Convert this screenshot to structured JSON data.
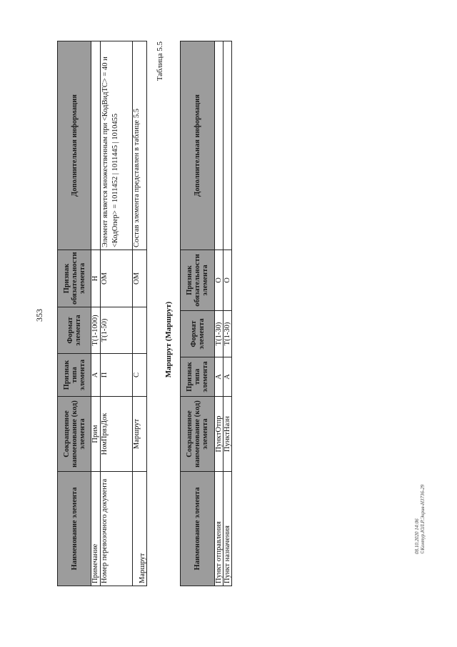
{
  "page_number": "353",
  "table1": {
    "headers": [
      "Наименование элемента",
      "Сокращенное наименование (код) элемента",
      "Признак типа элемента",
      "Формат элемента",
      "Признак обязательности элемента",
      "Дополнительная информация"
    ],
    "rows": [
      [
        "Примечание",
        "Прим",
        "А",
        "Т(1-1000)",
        "Н",
        ""
      ],
      [
        "Номер перевозочного документа",
        "НомПрвзДок",
        "П",
        "Т(1-50)",
        "ОМ",
        "Элемент является множественным при <КодВидТС> = 40  и <КодОпер> = 1011452 | 1011445 | 1010455"
      ],
      [
        "Маршрут",
        "Маршрут",
        "С",
        "",
        "ОМ",
        "Состав элемента представлен в таблице 5.5"
      ]
    ]
  },
  "table_caption": "Таблица 5.5",
  "table2_title": "Маршрут (Маршрут)",
  "table2": {
    "headers": [
      "Наименование элемента",
      "Сокращенное наименование (код) элемента",
      "Признак типа элемента",
      "Формат элемента",
      "Признак обязательности элемента",
      "Дополнительная информация"
    ],
    "rows": [
      [
        "Пункт отправления",
        "ПунктОтпр",
        "А",
        "Т(1-30)",
        "О",
        ""
      ],
      [
        "Пункт назначения",
        "ПунктНазн",
        "А",
        "Т(1-30)",
        "О",
        ""
      ]
    ]
  },
  "footer": {
    "line1": "08.10.2020 14:06",
    "line2": "©Контур.ЮЛ.Р.Экрив-Н3736-29"
  }
}
